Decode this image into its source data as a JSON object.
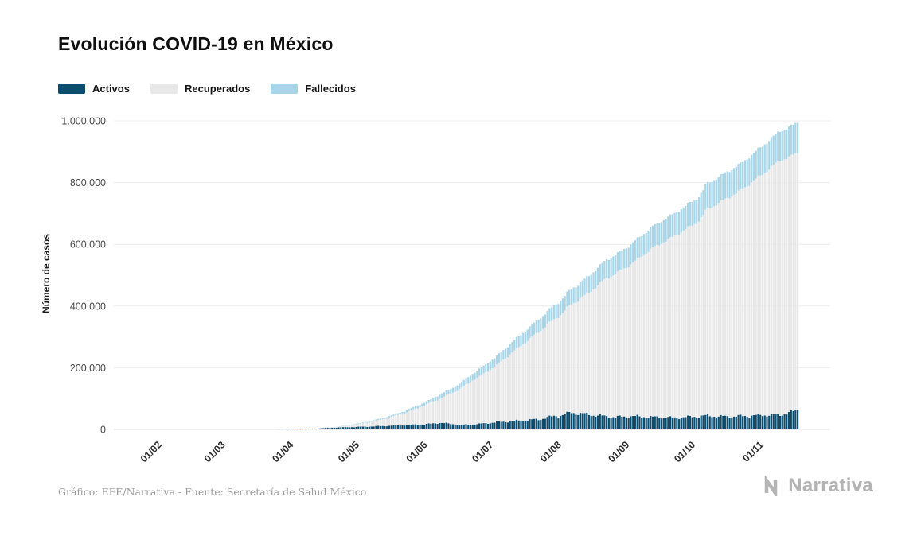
{
  "header": {
    "title": "Evolución COVID-19 en México"
  },
  "legend": {
    "items": [
      {
        "label": "Activos",
        "color": "#0c4c6e"
      },
      {
        "label": "Recuperados",
        "color": "#e8e8e8"
      },
      {
        "label": "Fallecidos",
        "color": "#a8d5e8"
      }
    ]
  },
  "chart_data": {
    "type": "area",
    "stacked": true,
    "title": "Evolución COVID-19 en México",
    "xlabel": "",
    "ylabel": "Número de casos",
    "ylim": [
      0,
      1000000
    ],
    "grid": "horizontal",
    "legend_position": "top-left",
    "x_unit": "days since 2020-01-10",
    "x_domain_days": [
      0,
      311
    ],
    "yticks": [
      {
        "value": 0,
        "label": "0"
      },
      {
        "value": 200000,
        "label": "200.000"
      },
      {
        "value": 400000,
        "label": "400.000"
      },
      {
        "value": 600000,
        "label": "600.000"
      },
      {
        "value": 800000,
        "label": "800.000"
      },
      {
        "value": 1000000,
        "label": "1.000.000"
      }
    ],
    "xticks": [
      {
        "day": 22,
        "label": "01/02"
      },
      {
        "day": 51,
        "label": "01/03"
      },
      {
        "day": 82,
        "label": "01/04"
      },
      {
        "day": 112,
        "label": "01/05"
      },
      {
        "day": 143,
        "label": "01/06"
      },
      {
        "day": 173,
        "label": "01/07"
      },
      {
        "day": 204,
        "label": "01/08"
      },
      {
        "day": 235,
        "label": "01/09"
      },
      {
        "day": 265,
        "label": "01/10"
      },
      {
        "day": 296,
        "label": "01/11"
      }
    ],
    "series": [
      {
        "name": "Activos",
        "color": "#0c4c6e",
        "points": [
          [
            0,
            0
          ],
          [
            49,
            1
          ],
          [
            60,
            10
          ],
          [
            71,
            150
          ],
          [
            82,
            1200
          ],
          [
            92,
            3000
          ],
          [
            102,
            6500
          ],
          [
            112,
            8500
          ],
          [
            122,
            11000
          ],
          [
            132,
            14000
          ],
          [
            143,
            17500
          ],
          [
            148,
            22000
          ],
          [
            157,
            14500
          ],
          [
            165,
            17000
          ],
          [
            173,
            23000
          ],
          [
            183,
            28000
          ],
          [
            193,
            33000
          ],
          [
            200,
            43000
          ],
          [
            204,
            47000
          ],
          [
            208,
            55000
          ],
          [
            214,
            50000
          ],
          [
            220,
            45000
          ],
          [
            228,
            40000
          ],
          [
            235,
            43000
          ],
          [
            245,
            40000
          ],
          [
            255,
            38000
          ],
          [
            265,
            42000
          ],
          [
            270,
            45000
          ],
          [
            275,
            42000
          ],
          [
            285,
            43000
          ],
          [
            296,
            47000
          ],
          [
            303,
            48000
          ],
          [
            308,
            55000
          ],
          [
            311,
            65000
          ]
        ]
      },
      {
        "name": "Recuperados",
        "color": "#e8e8e8",
        "points": [
          [
            0,
            0
          ],
          [
            49,
            0
          ],
          [
            60,
            0
          ],
          [
            71,
            50
          ],
          [
            82,
            140
          ],
          [
            92,
            610
          ],
          [
            102,
            2150
          ],
          [
            112,
            10270
          ],
          [
            122,
            21750
          ],
          [
            132,
            39060
          ],
          [
            143,
            65770
          ],
          [
            148,
            78110
          ],
          [
            153,
            97830
          ],
          [
            163,
            142720
          ],
          [
            173,
            180260
          ],
          [
            183,
            232540
          ],
          [
            193,
            282860
          ],
          [
            204,
            330950
          ],
          [
            214,
            382830
          ],
          [
            224,
            448120
          ],
          [
            235,
            492150
          ],
          [
            245,
            548120
          ],
          [
            255,
            588880
          ],
          [
            265,
            628240
          ],
          [
            268,
            650000
          ],
          [
            269,
            665000
          ],
          [
            275,
            691720
          ],
          [
            285,
            730820
          ],
          [
            296,
            786070
          ],
          [
            303,
            824800
          ],
          [
            311,
            831460
          ]
        ]
      },
      {
        "name": "Fallecidos",
        "color": "#a8d5e8",
        "points": [
          [
            0,
            0
          ],
          [
            49,
            0
          ],
          [
            60,
            0
          ],
          [
            71,
            2
          ],
          [
            82,
            37
          ],
          [
            92,
            233
          ],
          [
            102,
            857
          ],
          [
            112,
            1972
          ],
          [
            122,
            3573
          ],
          [
            132,
            6510
          ],
          [
            143,
            10170
          ],
          [
            148,
            13510
          ],
          [
            153,
            15360
          ],
          [
            163,
            21830
          ],
          [
            173,
            28510
          ],
          [
            183,
            34730
          ],
          [
            193,
            40400
          ],
          [
            204,
            46690
          ],
          [
            214,
            53000
          ],
          [
            224,
            59610
          ],
          [
            235,
            64410
          ],
          [
            245,
            70180
          ],
          [
            255,
            73700
          ],
          [
            265,
            78080
          ],
          [
            268,
            79500
          ],
          [
            269,
            82500
          ],
          [
            275,
            84300
          ],
          [
            285,
            86900
          ],
          [
            296,
            91900
          ],
          [
            303,
            95030
          ],
          [
            311,
            98540
          ]
        ]
      }
    ]
  },
  "footer": {
    "source": "Gráfico: EFE/Narrativa - Fuente: Secretaría de Salud México",
    "brand": "Narrativa"
  }
}
